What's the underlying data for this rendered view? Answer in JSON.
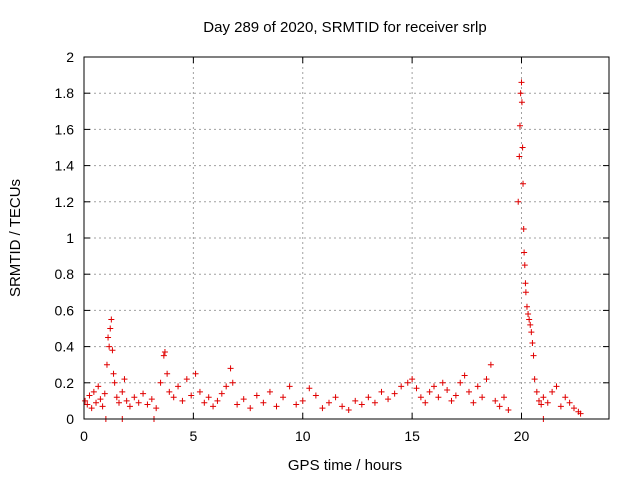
{
  "chart_data": {
    "type": "scatter",
    "title": "Day 289 of 2020, SRMTID for receiver srlp",
    "xlabel": "GPS time / hours",
    "ylabel": "SRMTID / TECUs",
    "xlim": [
      0,
      24
    ],
    "ylim": [
      0,
      2
    ],
    "xticks": [
      0,
      5,
      10,
      15,
      20
    ],
    "xtick_labels": [
      "0",
      "5",
      "10",
      "15",
      "20"
    ],
    "yticks": [
      0,
      0.2,
      0.4,
      0.6,
      0.8,
      1,
      1.2,
      1.4,
      1.6,
      1.8,
      2
    ],
    "ytick_labels": [
      "0",
      "0.2",
      "0.4",
      "0.6",
      "0.8",
      "1",
      "1.2",
      "1.4",
      "1.6",
      "1.8",
      "2"
    ],
    "grid": true,
    "marker": "+",
    "color": "#e00000",
    "series": [
      {
        "name": "srlp",
        "points": [
          [
            0.05,
            0.1
          ],
          [
            0.15,
            0.08
          ],
          [
            0.25,
            0.13
          ],
          [
            0.35,
            0.06
          ],
          [
            0.45,
            0.15
          ],
          [
            0.55,
            0.09
          ],
          [
            0.65,
            0.18
          ],
          [
            0.75,
            0.11
          ],
          [
            0.85,
            0.07
          ],
          [
            0.95,
            0.14
          ],
          [
            1.05,
            0.3
          ],
          [
            1.1,
            0.45
          ],
          [
            1.15,
            0.4
          ],
          [
            1.2,
            0.5
          ],
          [
            1.25,
            0.55
          ],
          [
            1.3,
            0.38
          ],
          [
            1.35,
            0.25
          ],
          [
            1.4,
            0.2
          ],
          [
            1.5,
            0.12
          ],
          [
            1.6,
            0.09
          ],
          [
            1.75,
            0.15
          ],
          [
            1.85,
            0.22
          ],
          [
            1.95,
            0.1
          ],
          [
            2.1,
            0.07
          ],
          [
            2.3,
            0.12
          ],
          [
            2.5,
            0.09
          ],
          [
            2.7,
            0.14
          ],
          [
            2.9,
            0.08
          ],
          [
            3.1,
            0.11
          ],
          [
            3.3,
            0.06
          ],
          [
            3.5,
            0.2
          ],
          [
            3.65,
            0.35
          ],
          [
            3.7,
            0.37
          ],
          [
            3.8,
            0.25
          ],
          [
            3.9,
            0.15
          ],
          [
            4.1,
            0.12
          ],
          [
            4.3,
            0.18
          ],
          [
            4.5,
            0.1
          ],
          [
            4.7,
            0.22
          ],
          [
            4.9,
            0.13
          ],
          [
            5.1,
            0.25
          ],
          [
            5.3,
            0.15
          ],
          [
            5.5,
            0.09
          ],
          [
            5.7,
            0.12
          ],
          [
            5.9,
            0.07
          ],
          [
            6.1,
            0.1
          ],
          [
            6.3,
            0.14
          ],
          [
            6.5,
            0.18
          ],
          [
            6.7,
            0.28
          ],
          [
            6.8,
            0.2
          ],
          [
            7.0,
            0.08
          ],
          [
            7.3,
            0.11
          ],
          [
            7.6,
            0.06
          ],
          [
            7.9,
            0.13
          ],
          [
            8.2,
            0.09
          ],
          [
            8.5,
            0.15
          ],
          [
            8.8,
            0.07
          ],
          [
            9.1,
            0.12
          ],
          [
            9.4,
            0.18
          ],
          [
            9.7,
            0.08
          ],
          [
            10.0,
            0.1
          ],
          [
            10.3,
            0.17
          ],
          [
            10.6,
            0.13
          ],
          [
            10.9,
            0.06
          ],
          [
            11.2,
            0.09
          ],
          [
            11.5,
            0.12
          ],
          [
            11.8,
            0.07
          ],
          [
            12.1,
            0.05
          ],
          [
            12.4,
            0.1
          ],
          [
            12.7,
            0.08
          ],
          [
            13.0,
            0.12
          ],
          [
            13.3,
            0.09
          ],
          [
            13.6,
            0.15
          ],
          [
            13.9,
            0.11
          ],
          [
            14.2,
            0.14
          ],
          [
            14.5,
            0.18
          ],
          [
            14.8,
            0.2
          ],
          [
            15.0,
            0.22
          ],
          [
            15.2,
            0.17
          ],
          [
            15.4,
            0.12
          ],
          [
            15.6,
            0.09
          ],
          [
            15.8,
            0.15
          ],
          [
            16.0,
            0.18
          ],
          [
            16.2,
            0.12
          ],
          [
            16.4,
            0.2
          ],
          [
            16.6,
            0.16
          ],
          [
            16.8,
            0.1
          ],
          [
            17.0,
            0.13
          ],
          [
            17.2,
            0.2
          ],
          [
            17.4,
            0.24
          ],
          [
            17.6,
            0.15
          ],
          [
            17.8,
            0.09
          ],
          [
            18.0,
            0.18
          ],
          [
            18.2,
            0.12
          ],
          [
            18.4,
            0.22
          ],
          [
            18.6,
            0.3
          ],
          [
            18.8,
            0.1
          ],
          [
            19.0,
            0.07
          ],
          [
            19.2,
            0.12
          ],
          [
            19.4,
            0.05
          ],
          [
            19.85,
            1.2
          ],
          [
            19.9,
            1.45
          ],
          [
            19.93,
            1.62
          ],
          [
            19.96,
            1.8
          ],
          [
            20.0,
            1.86
          ],
          [
            20.02,
            1.75
          ],
          [
            20.05,
            1.5
          ],
          [
            20.07,
            1.3
          ],
          [
            20.1,
            1.05
          ],
          [
            20.12,
            0.92
          ],
          [
            20.15,
            0.85
          ],
          [
            20.18,
            0.75
          ],
          [
            20.2,
            0.7
          ],
          [
            20.25,
            0.62
          ],
          [
            20.3,
            0.58
          ],
          [
            20.35,
            0.55
          ],
          [
            20.4,
            0.52
          ],
          [
            20.45,
            0.48
          ],
          [
            20.5,
            0.42
          ],
          [
            20.55,
            0.35
          ],
          [
            20.6,
            0.22
          ],
          [
            20.7,
            0.15
          ],
          [
            20.8,
            0.1
          ],
          [
            20.9,
            0.08
          ],
          [
            21.0,
            0.12
          ],
          [
            21.2,
            0.09
          ],
          [
            21.4,
            0.15
          ],
          [
            21.6,
            0.18
          ],
          [
            21.8,
            0.07
          ],
          [
            22.0,
            0.12
          ],
          [
            22.2,
            0.09
          ],
          [
            22.4,
            0.06
          ],
          [
            22.6,
            0.04
          ],
          [
            22.7,
            0.03
          ],
          [
            1.0,
            0.0
          ],
          [
            1.75,
            0.0
          ],
          [
            3.2,
            0.0
          ],
          [
            21.0,
            0.0
          ]
        ]
      }
    ]
  }
}
